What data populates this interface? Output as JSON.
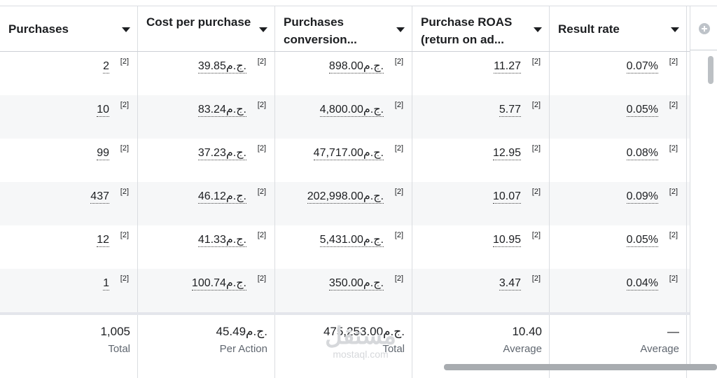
{
  "headers": [
    {
      "label": "Purchases"
    },
    {
      "label": "Cost per purchase"
    },
    {
      "label": "Purchases conversion..."
    },
    {
      "label": "Purchase ROAS (return on ad..."
    },
    {
      "label": "Result rate"
    }
  ],
  "footnote": "[2]",
  "rows": [
    [
      "2",
      "39.85ج.م.",
      "898.00ج.م.",
      "11.27",
      "0.07%"
    ],
    [
      "10",
      "83.24ج.م.",
      "4,800.00ج.م.",
      "5.77",
      "0.05%"
    ],
    [
      "99",
      "37.23ج.م.",
      "47,717.00ج.م.",
      "12.95",
      "0.08%"
    ],
    [
      "437",
      "46.12ج.م.",
      "202,998.00ج.م.",
      "10.07",
      "0.09%"
    ],
    [
      "12",
      "41.33ج.م.",
      "5,431.00ج.م.",
      "10.95",
      "0.05%"
    ],
    [
      "1",
      "100.74ج.م.",
      "350.00ج.م.",
      "3.47",
      "0.04%"
    ]
  ],
  "totals": [
    {
      "value": "1,005",
      "label": "Total"
    },
    {
      "value": "45.49ج.م.",
      "label": "Per Action"
    },
    {
      "value": "475,253.00ج.م.",
      "label": "Total"
    },
    {
      "value": "10.40",
      "label": "Average"
    },
    {
      "value": "—",
      "label": "Average"
    }
  ],
  "watermark": {
    "mark": "مستقل",
    "text": "mostaql.com"
  },
  "icons": {
    "add_column": "plus-circle-icon",
    "sort": "caret-down-icon"
  }
}
